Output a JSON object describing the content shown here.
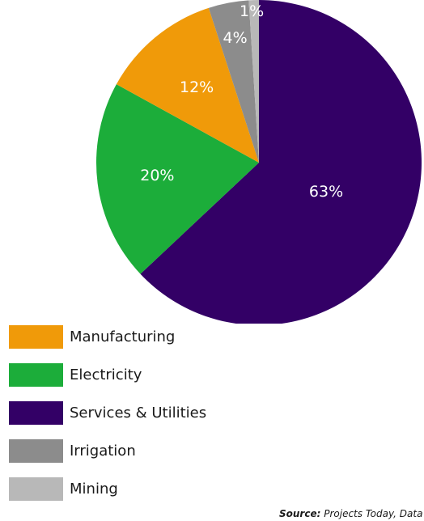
{
  "chart_data": {
    "type": "pie",
    "categories": [
      "Services & Utilities",
      "Electricity",
      "Manufacturing",
      "Irrigation",
      "Mining"
    ],
    "values": [
      63,
      20,
      12,
      4,
      1
    ],
    "labels": [
      "63%",
      "20%",
      "12%",
      "4%",
      "1%"
    ],
    "colors": [
      "#330066",
      "#1cad3a",
      "#f09a09",
      "#8c8c8c",
      "#b8b8b8"
    ],
    "start_angle_deg": 0,
    "direction": "clockwise",
    "legend": {
      "position": "bottom-left",
      "items": [
        {
          "label": "Manufacturing",
          "color": "#f09a09"
        },
        {
          "label": "Electricity",
          "color": "#1cad3a"
        },
        {
          "label": "Services & Utilities",
          "color": "#330066"
        },
        {
          "label": "Irrigation",
          "color": "#8c8c8c"
        },
        {
          "label": "Mining",
          "color": "#b8b8b8"
        }
      ]
    }
  },
  "source": {
    "prefix": "Source:",
    "text": "Projects Today, Data as"
  }
}
